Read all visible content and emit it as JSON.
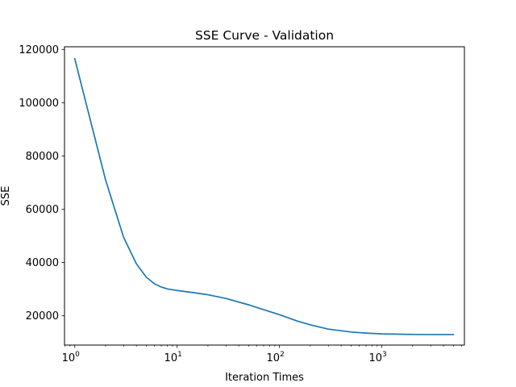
{
  "chart_data": {
    "type": "line",
    "title": "SSE Curve - Validation",
    "xlabel": "Iteration Times",
    "ylabel": "SSE",
    "xscale": "log",
    "xlim": [
      0.794,
      6400
    ],
    "ylim": [
      9000,
      121000
    ],
    "grid": false,
    "yticks": [
      {
        "value": 20000,
        "label": "20000"
      },
      {
        "value": 40000,
        "label": "40000"
      },
      {
        "value": 60000,
        "label": "60000"
      },
      {
        "value": 80000,
        "label": "80000"
      },
      {
        "value": 100000,
        "label": "100000"
      },
      {
        "value": 120000,
        "label": "120000"
      }
    ],
    "xticks": [
      {
        "value": 1,
        "base": "10",
        "exp": "0"
      },
      {
        "value": 10,
        "base": "10",
        "exp": "1"
      },
      {
        "value": 100,
        "base": "10",
        "exp": "2"
      },
      {
        "value": 1000,
        "base": "10",
        "exp": "3"
      }
    ],
    "series": [
      {
        "color": "#1f77b4",
        "x": [
          1,
          2,
          3,
          4,
          5,
          6,
          7,
          8,
          10,
          15,
          20,
          30,
          50,
          70,
          100,
          150,
          200,
          300,
          500,
          700,
          1000,
          2000,
          3000,
          5000
        ],
        "y": [
          116500,
          71000,
          49500,
          39500,
          34500,
          32000,
          30800,
          30100,
          29500,
          28600,
          27900,
          26500,
          24100,
          22300,
          20400,
          18000,
          16600,
          15000,
          13900,
          13500,
          13200,
          13000,
          12950,
          12950
        ]
      }
    ]
  }
}
